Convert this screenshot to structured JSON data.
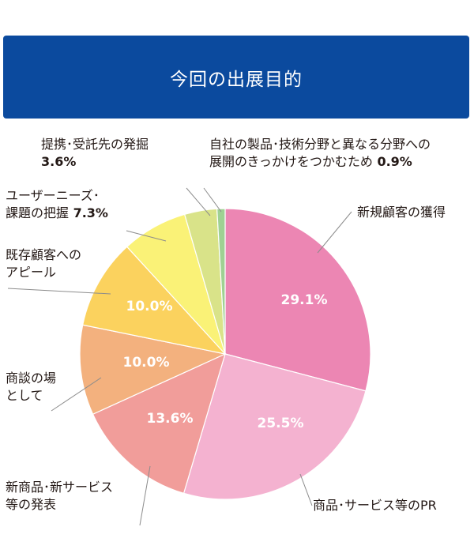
{
  "header": {
    "title": "今回の出展目的"
  },
  "colors": {
    "title_bg": "#0b4a9e",
    "slices": [
      "#ec86b3",
      "#f4b2d0",
      "#f19d9a",
      "#f3b17e",
      "#fbd25e",
      "#faf277",
      "#d9e389",
      "#9fd193"
    ]
  },
  "chart_data": {
    "type": "pie",
    "title": "今回の出展目的",
    "start": "12 o'clock, clockwise",
    "slices": [
      {
        "label": "新規顧客の獲得",
        "value": 29.1,
        "value_text": "29.1%",
        "label_lines": [
          "新規顧客の獲得"
        ]
      },
      {
        "label": "商品・サービス等のPR",
        "value": 25.5,
        "value_text": "25.5%",
        "label_lines": [
          "商品･サービス等のPR"
        ]
      },
      {
        "label": "新商品・新サービス等の発表",
        "value": 13.6,
        "value_text": "13.6%",
        "label_lines": [
          "新商品･新サービス",
          "等の発表"
        ]
      },
      {
        "label": "商談の場として",
        "value": 10.0,
        "value_text": "10.0%",
        "label_lines": [
          "商談の場",
          "として"
        ]
      },
      {
        "label": "既存顧客へのアピール",
        "value": 10.0,
        "value_text": "10.0%",
        "label_lines": [
          "既存顧客への",
          "アピール"
        ]
      },
      {
        "label": "ユーザーニーズ・課題の把握",
        "value": 7.3,
        "value_text": "7.3%",
        "label_lines": [
          "ユーザーニーズ･",
          "課題の把握"
        ]
      },
      {
        "label": "提携・受託先の発掘",
        "value": 3.6,
        "value_text": "3.6%",
        "label_lines": [
          "提携･受託先の発掘"
        ]
      },
      {
        "label": "自社の製品・技術分野と異なる分野への展開のきっかけをつかむため",
        "value": 0.9,
        "value_text": "0.9%",
        "label_lines": [
          "自社の製品･技術分野と異なる分野への",
          "展開のきっかけをつかむため"
        ]
      }
    ]
  }
}
